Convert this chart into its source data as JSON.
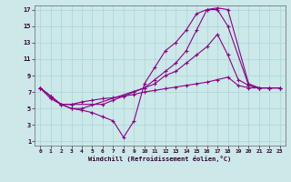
{
  "bg_color": "#cce8e8",
  "line_color": "#880088",
  "xlim": [
    -0.5,
    23.5
  ],
  "ylim": [
    0.5,
    17.5
  ],
  "xticks": [
    0,
    1,
    2,
    3,
    4,
    5,
    6,
    7,
    8,
    9,
    10,
    11,
    12,
    13,
    14,
    15,
    16,
    17,
    18,
    19,
    20,
    21,
    22,
    23
  ],
  "yticks": [
    1,
    3,
    5,
    7,
    9,
    11,
    13,
    15,
    17
  ],
  "xlabel": "Windchill (Refroidissement éolien,°C)",
  "series": [
    {
      "x": [
        0,
        1,
        2,
        3,
        4,
        5,
        6,
        7,
        8,
        9,
        10,
        11,
        12,
        13,
        14,
        15,
        16,
        17,
        18,
        20,
        21,
        22,
        23
      ],
      "y": [
        7.5,
        6.5,
        5.5,
        5.0,
        4.8,
        4.5,
        4.0,
        3.5,
        1.5,
        3.5,
        8.0,
        10.0,
        12.0,
        13.0,
        14.5,
        16.5,
        17.0,
        17.2,
        17.0,
        8.0,
        7.5,
        7.5,
        7.5
      ]
    },
    {
      "x": [
        0,
        1,
        2,
        3,
        4,
        10,
        11,
        12,
        13,
        14,
        15,
        16,
        17,
        18,
        20,
        21,
        22,
        23
      ],
      "y": [
        7.5,
        6.5,
        5.5,
        5.0,
        5.0,
        7.5,
        8.5,
        9.5,
        10.5,
        12.0,
        14.5,
        17.0,
        17.0,
        15.0,
        7.8,
        7.5,
        7.5,
        7.5
      ]
    },
    {
      "x": [
        0,
        1,
        2,
        3,
        5,
        6,
        7,
        8,
        9,
        10,
        11,
        12,
        13,
        14,
        15,
        16,
        17,
        18,
        19,
        20,
        21,
        22,
        23
      ],
      "y": [
        7.5,
        6.5,
        5.5,
        5.5,
        5.5,
        5.5,
        6.0,
        6.5,
        7.0,
        7.5,
        8.0,
        9.0,
        9.5,
        10.5,
        11.5,
        12.5,
        14.0,
        11.5,
        8.5,
        7.8,
        7.5,
        7.5,
        7.5
      ]
    },
    {
      "x": [
        0,
        1,
        2,
        3,
        4,
        5,
        6,
        7,
        8,
        9,
        10,
        11,
        12,
        13,
        14,
        15,
        16,
        17,
        18,
        19,
        20,
        21,
        22,
        23
      ],
      "y": [
        7.5,
        6.2,
        5.5,
        5.5,
        5.8,
        6.0,
        6.2,
        6.3,
        6.5,
        6.7,
        7.0,
        7.2,
        7.4,
        7.6,
        7.8,
        8.0,
        8.2,
        8.5,
        8.8,
        7.8,
        7.5,
        7.5,
        7.5,
        7.5
      ]
    }
  ]
}
